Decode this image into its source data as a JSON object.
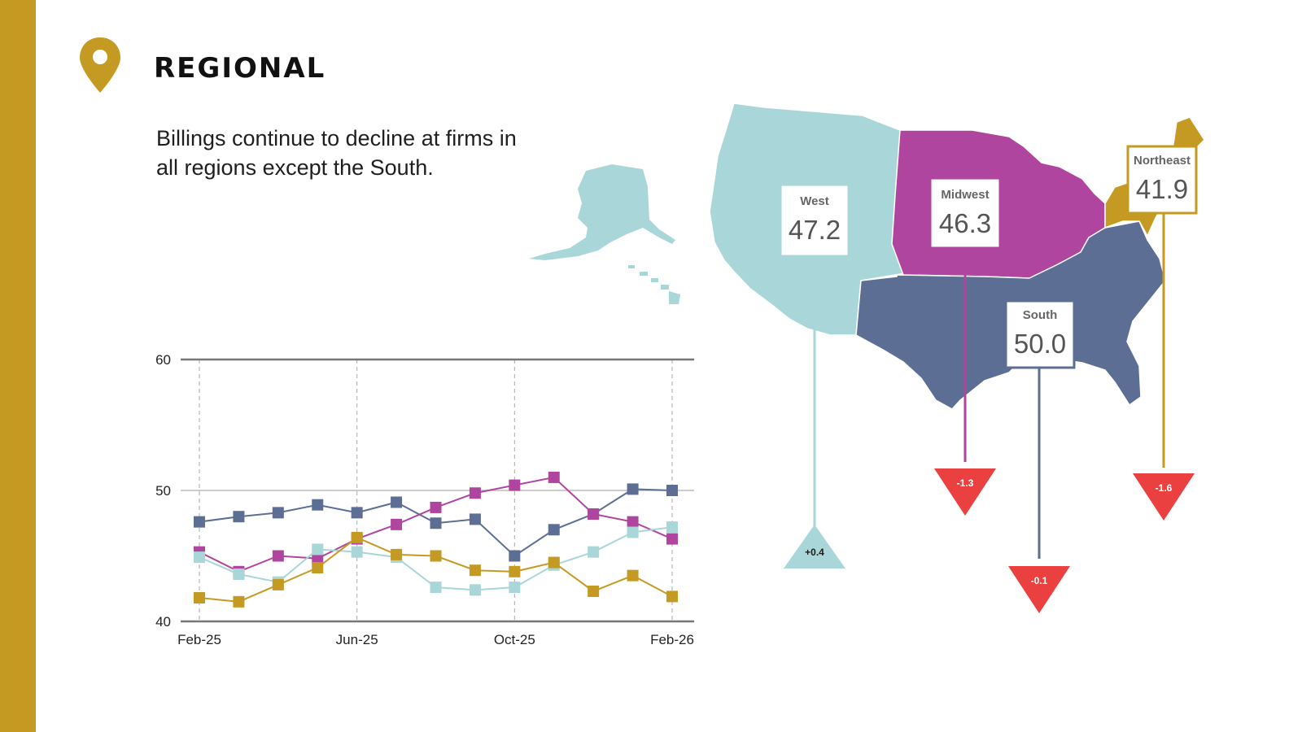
{
  "header": {
    "title": "REGIONAL",
    "subtitle": "Billings continue to decline at firms in all regions except the South.",
    "icon": "location-pin-icon",
    "accent_color": "#c59a22"
  },
  "chart_data": {
    "type": "line",
    "categories": [
      "Feb-25",
      "Mar-25",
      "Apr-25",
      "May-25",
      "Jun-25",
      "Jul-25",
      "Aug-25",
      "Sep-25",
      "Oct-25",
      "Nov-25",
      "Dec-25",
      "Jan-26",
      "Feb-26"
    ],
    "x_tick_labels": [
      "Feb-25",
      "Jun-25",
      "Oct-25",
      "Feb-26"
    ],
    "x_tick_indices": [
      0,
      4,
      8,
      12
    ],
    "y_ticks": [
      "40",
      "50",
      "60"
    ],
    "ylim": [
      40,
      60
    ],
    "grid": "horizontal solid at 50 and 60, vertical dashed at labeled ticks",
    "series": [
      {
        "color": "#5d6e94",
        "values": [
          47.6,
          48.0,
          48.3,
          48.9,
          48.3,
          49.1,
          47.5,
          47.8,
          45.0,
          47.0,
          48.2,
          50.1,
          50.0
        ]
      },
      {
        "color": "#b0459f",
        "values": [
          45.3,
          43.8,
          45.0,
          44.8,
          46.3,
          47.4,
          48.7,
          49.8,
          50.4,
          51.0,
          48.2,
          47.6,
          46.3
        ]
      },
      {
        "color": "#a9d6d8",
        "values": [
          44.9,
          43.6,
          43.0,
          45.5,
          45.3,
          44.9,
          42.6,
          42.4,
          42.6,
          44.3,
          45.3,
          46.8,
          47.2
        ]
      },
      {
        "color": "#c59a22",
        "values": [
          41.8,
          41.5,
          42.8,
          44.1,
          46.4,
          45.1,
          45.0,
          43.9,
          43.8,
          44.5,
          42.3,
          43.5,
          41.9
        ]
      }
    ]
  },
  "map": {
    "regions": [
      {
        "name": "West",
        "value": "47.2",
        "change": "+0.4",
        "direction": "up",
        "color": "#a9d6d8",
        "change_color": "#a9d6d8",
        "change_text_color": "#1a1a1a"
      },
      {
        "name": "Midwest",
        "value": "46.3",
        "change": "-1.3",
        "direction": "down",
        "color": "#b0459f",
        "change_color": "#ea4040",
        "change_text_color": "#ffffff"
      },
      {
        "name": "South",
        "value": "50.0",
        "change": "-0.1",
        "direction": "down",
        "color": "#5d6e94",
        "change_color": "#ea4040",
        "change_text_color": "#ffffff"
      },
      {
        "name": "Northeast",
        "value": "41.9",
        "change": "-1.6",
        "direction": "down",
        "color": "#c59a22",
        "change_color": "#ea4040",
        "change_text_color": "#ffffff"
      }
    ]
  }
}
